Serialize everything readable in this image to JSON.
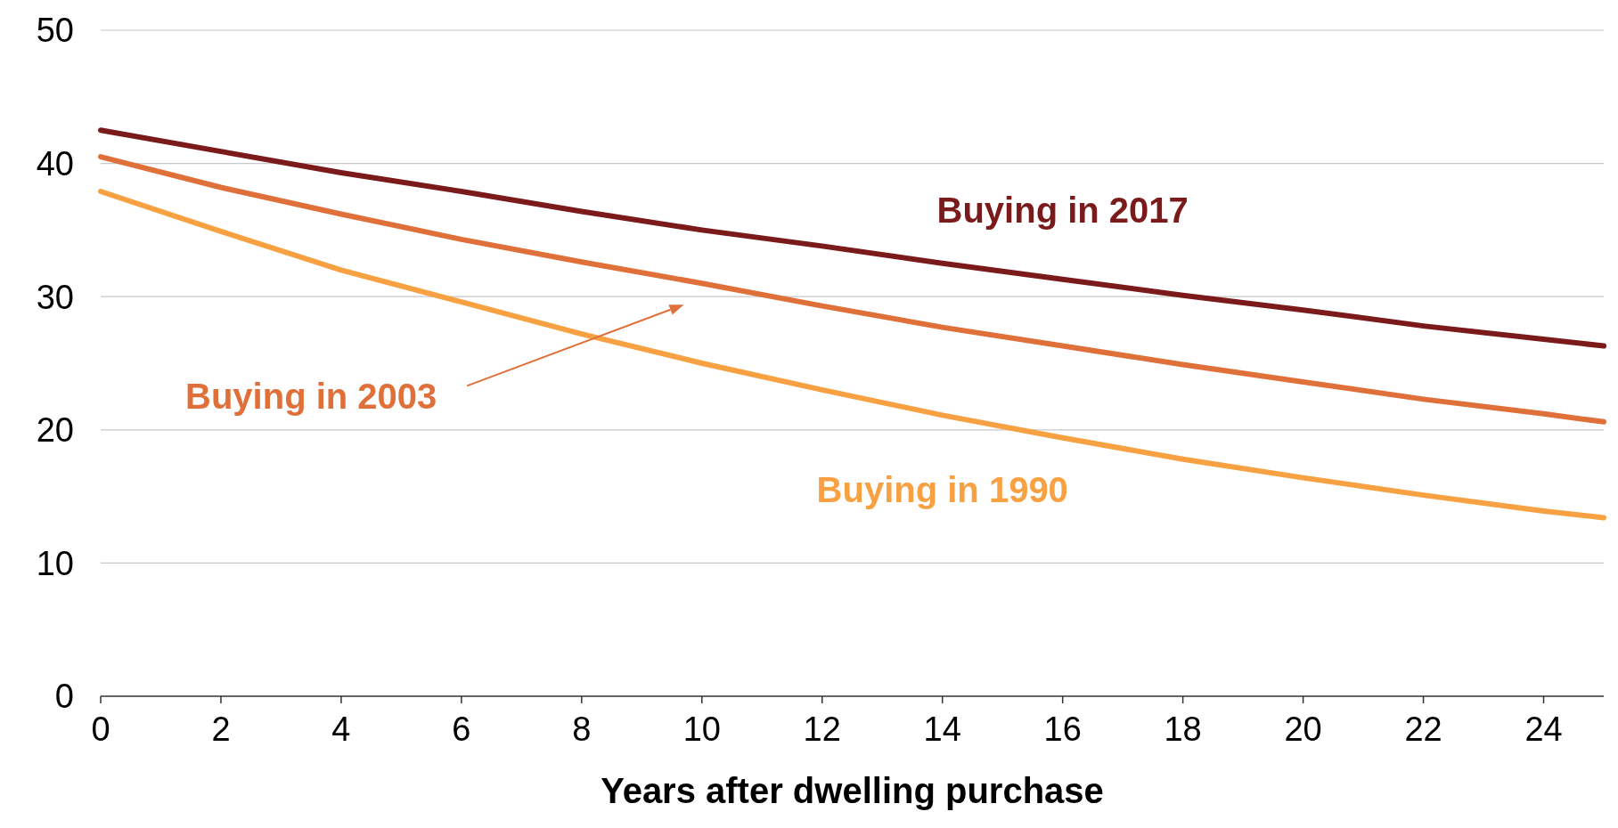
{
  "chart_data": {
    "type": "line",
    "xlabel": "Years after dwelling purchase",
    "xlim": [
      0,
      25
    ],
    "xticks": [
      0,
      2,
      4,
      6,
      8,
      10,
      12,
      14,
      16,
      18,
      20,
      22,
      24
    ],
    "ylim": [
      0,
      50
    ],
    "yticks": [
      0,
      10,
      20,
      30,
      40,
      50
    ],
    "grid": "y",
    "marker": "none",
    "line_style": "solid",
    "x": [
      0,
      2,
      4,
      6,
      8,
      10,
      12,
      14,
      16,
      18,
      20,
      22,
      24,
      25
    ],
    "series": [
      {
        "name": "Buying in 2017",
        "color": "#7b1a1a",
        "values": [
          42.5,
          40.9,
          39.3,
          37.9,
          36.4,
          35.0,
          33.8,
          32.5,
          31.3,
          30.1,
          29.0,
          27.8,
          26.8,
          26.3
        ]
      },
      {
        "name": "Buying in 2003",
        "color": "#e0703a",
        "values": [
          40.5,
          38.2,
          36.2,
          34.3,
          32.6,
          31.0,
          29.3,
          27.7,
          26.3,
          24.9,
          23.6,
          22.3,
          21.2,
          20.6
        ]
      },
      {
        "name": "Buying in 1990",
        "color": "#f7a143",
        "values": [
          37.9,
          34.9,
          32.0,
          29.6,
          27.2,
          25.0,
          23.0,
          21.1,
          19.4,
          17.8,
          16.4,
          15.1,
          13.9,
          13.4
        ]
      }
    ]
  }
}
